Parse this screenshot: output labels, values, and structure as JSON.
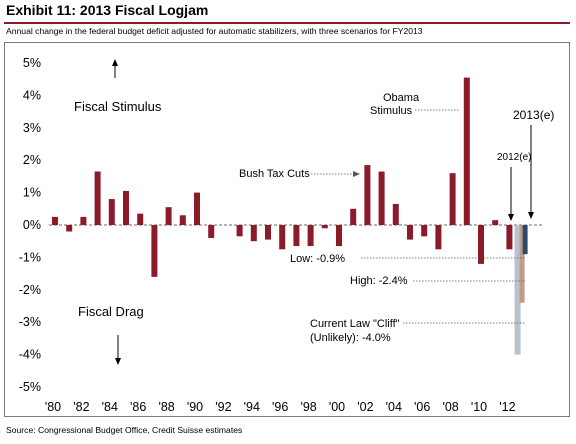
{
  "header": {
    "title": "Exhibit 11: 2013 Fiscal Logjam",
    "subtitle": "Annual change in the federal budget deficit adjusted for automatic stabilizers, with three scenarios for FY2013"
  },
  "footer": {
    "source": "Source: Congressional Budget Office, Credit Suisse estimates"
  },
  "colors": {
    "bar": "#8b1a2b",
    "estimate_2013": "#2f4a6b",
    "high_scenario": "#c39b86",
    "cliff_scenario": "#b9c3cc",
    "title_rule": "#8b1a2b"
  },
  "chart_data": {
    "type": "bar",
    "title": "",
    "xlabel": "",
    "ylabel": "",
    "ylim": [
      -5,
      5
    ],
    "y_ticks": [
      5,
      4,
      3,
      2,
      1,
      0,
      -1,
      -2,
      -3,
      -4,
      -5
    ],
    "y_tick_labels": [
      "5%",
      "4%",
      "3%",
      "2%",
      "1%",
      "0%",
      "-1%",
      "-2%",
      "-3%",
      "-4%",
      "-5%"
    ],
    "x_tick_labels": [
      "'80",
      "'82",
      "'84",
      "'86",
      "'88",
      "'90",
      "'92",
      "'94",
      "'96",
      "'98",
      "'00",
      "'02",
      "'04",
      "'06",
      "'08",
      "'10",
      "'12"
    ],
    "years": [
      1980,
      1981,
      1982,
      1983,
      1984,
      1985,
      1986,
      1987,
      1988,
      1989,
      1990,
      1991,
      1992,
      1993,
      1994,
      1995,
      1996,
      1997,
      1998,
      1999,
      2000,
      2001,
      2002,
      2003,
      2004,
      2005,
      2006,
      2007,
      2008,
      2009,
      2010,
      2011,
      2012
    ],
    "values": [
      0.25,
      -0.2,
      0.25,
      1.65,
      0.8,
      1.05,
      0.35,
      -1.6,
      0.55,
      0.3,
      1.0,
      -0.4,
      0.0,
      -0.35,
      -0.5,
      -0.45,
      -0.75,
      -0.65,
      -0.65,
      -0.1,
      -0.65,
      0.5,
      1.85,
      1.65,
      0.65,
      -0.45,
      -0.35,
      -0.75,
      1.6,
      4.55,
      -1.2,
      0.15,
      -0.75
    ],
    "scenarios_2013": [
      {
        "name": "Current Law \"Cliff\" (Unlikely)",
        "value": -4.0
      },
      {
        "name": "High",
        "value": -2.4
      },
      {
        "name": "Low",
        "value": -0.9
      }
    ],
    "annotations": {
      "fiscal_stimulus": "Fiscal Stimulus",
      "fiscal_drag": "Fiscal Drag",
      "obama_line1": "Obama",
      "obama_line2": "Stimulus",
      "bush": "Bush Tax Cuts",
      "est_2012": "2012(e)",
      "est_2013": "2013(e)",
      "low": "Low: -0.9%",
      "high": "High: -2.4%",
      "cliff_line1": "Current Law \"Cliff\"",
      "cliff_line2": "(Unlikely): -4.0%"
    }
  }
}
